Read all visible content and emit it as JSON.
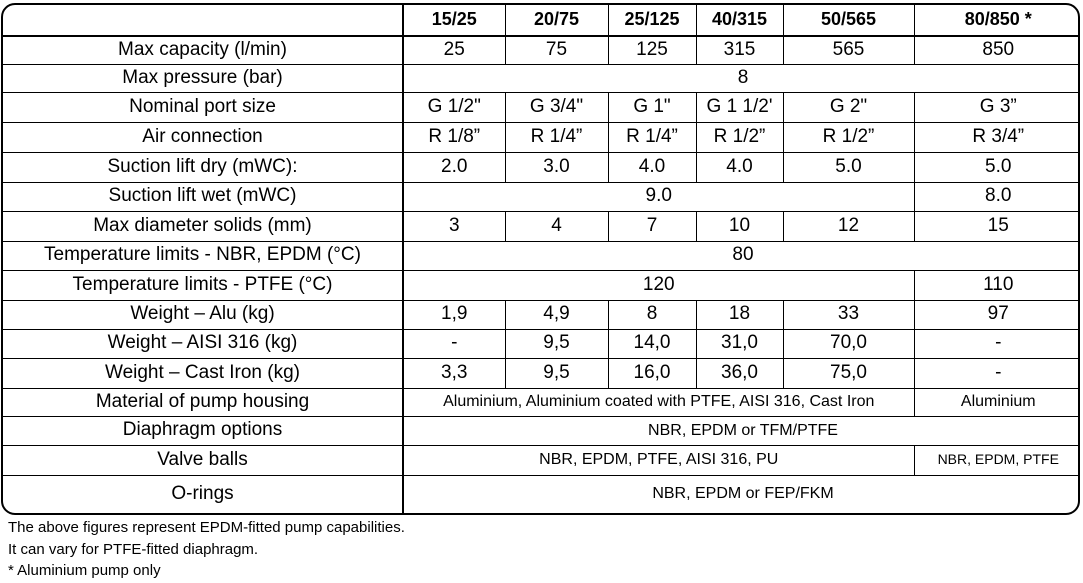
{
  "headers": [
    "15/25",
    "20/75",
    "25/125",
    "40/315",
    "50/565",
    "80/850 *"
  ],
  "rows": {
    "max_capacity": {
      "label": "Max capacity (l/min)",
      "values": [
        "25",
        "75",
        "125",
        "315",
        "565",
        "850"
      ]
    },
    "max_pressure": {
      "label": "Max pressure (bar)",
      "value": "8"
    },
    "port_size": {
      "label": "Nominal port size",
      "values": [
        "G 1/2\"",
        "G 3/4\"",
        "G 1\"",
        "G 1 1/2'",
        "G 2\"",
        "G 3”"
      ]
    },
    "air_connection": {
      "label": "Air connection",
      "values": [
        "R 1/8”",
        "R 1/4”",
        "R 1/4”",
        "R 1/2”",
        "R 1/2”",
        "R 3/4”"
      ]
    },
    "lift_dry": {
      "label": "Suction lift dry (mWC):",
      "values": [
        "2.0",
        "3.0",
        "4.0",
        "4.0",
        "5.0",
        "5.0"
      ]
    },
    "lift_wet": {
      "label": "Suction lift wet (mWC)",
      "value_main": "9.0",
      "value_last": "8.0"
    },
    "solids": {
      "label": "Max diameter solids (mm)",
      "values": [
        "3",
        "4",
        "7",
        "10",
        "12",
        "15"
      ]
    },
    "temp_nbr": {
      "label": "Temperature limits - NBR, EPDM (°C)",
      "value": "80"
    },
    "temp_ptfe": {
      "label": "Temperature limits - PTFE (°C)",
      "value_main": "120",
      "value_last": "110"
    },
    "weight_alu": {
      "label": "Weight – Alu (kg)",
      "values": [
        "1,9",
        "4,9",
        "8",
        "18",
        "33",
        "97"
      ]
    },
    "weight_aisi": {
      "label": "Weight – AISI 316 (kg)",
      "values": [
        "-",
        "9,5",
        "14,0",
        "31,0",
        "70,0",
        "-"
      ]
    },
    "weight_iron": {
      "label": "Weight – Cast Iron (kg)",
      "values": [
        "3,3",
        "9,5",
        "16,0",
        "36,0",
        "75,0",
        "-"
      ]
    },
    "housing": {
      "label": "Material of pump housing",
      "value_main": "Aluminium, Aluminium coated with PTFE, AISI 316, Cast Iron",
      "value_last": "Aluminium"
    },
    "diaphragm": {
      "label": "Diaphragm options",
      "value": "NBR, EPDM or TFM/PTFE"
    },
    "valve_balls": {
      "label": "Valve balls",
      "value_main": "NBR, EPDM, PTFE, AISI 316, PU",
      "value_last": "NBR, EPDM, PTFE"
    },
    "orings": {
      "label": "O-rings",
      "value": "NBR, EPDM or FEP/FKM"
    }
  },
  "notes": [
    "The above figures represent EPDM-fitted pump capabilities.",
    "It can vary for PTFE-fitted diaphragm.",
    "* Aluminium pump only"
  ]
}
